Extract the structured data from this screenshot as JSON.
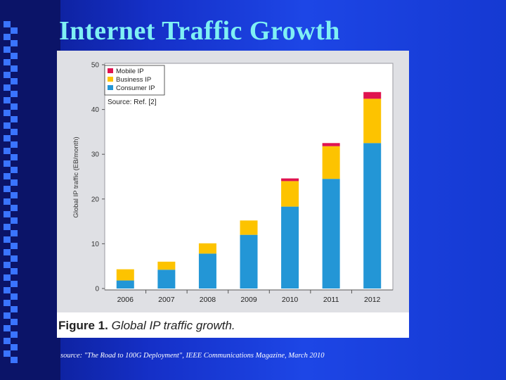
{
  "slide": {
    "title": "Internet Traffic Growth",
    "source_note": "source: \"The Road to 100G Deployment\", IEEE Communications Magazine, March 2010"
  },
  "figure": {
    "caption_label": "Figure 1.",
    "caption_text": "Global IP traffic growth.",
    "source_ref": "Source: Ref. [2]"
  },
  "colors": {
    "mobile": "#e0134f",
    "business": "#fdc300",
    "consumer": "#2396d6"
  },
  "chart_data": {
    "type": "bar",
    "stacked": true,
    "categories": [
      "2006",
      "2007",
      "2008",
      "2009",
      "2010",
      "2011",
      "2012"
    ],
    "series": [
      {
        "name": "Consumer IP",
        "key": "consumer",
        "values": [
          1.8,
          4.2,
          7.8,
          12.0,
          18.3,
          24.5,
          32.5
        ]
      },
      {
        "name": "Business IP",
        "key": "business",
        "values": [
          2.5,
          1.8,
          2.3,
          3.2,
          5.7,
          7.3,
          9.9
        ]
      },
      {
        "name": "Mobile IP",
        "key": "mobile",
        "values": [
          0,
          0,
          0,
          0,
          0.6,
          0.7,
          1.5
        ]
      }
    ],
    "legend": [
      "Mobile IP",
      "Business IP",
      "Consumer IP"
    ],
    "ylabel": "Global IP traffic (EB/month)",
    "xlabel": "",
    "ylim": [
      0,
      50
    ],
    "yticks": [
      0,
      10,
      20,
      30,
      40,
      50
    ],
    "legend_position": "top-left"
  }
}
